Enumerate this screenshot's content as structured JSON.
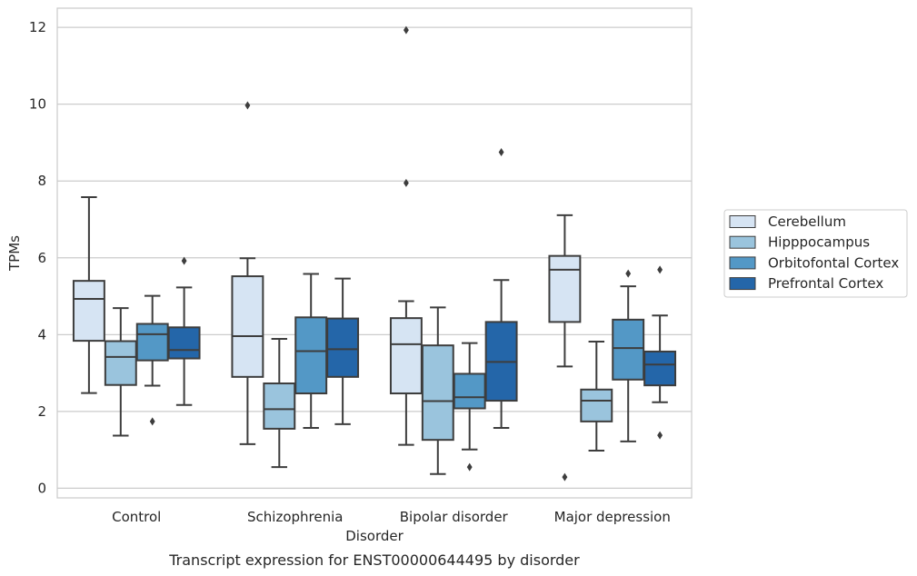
{
  "chart_data": {
    "type": "box",
    "caption": "Transcript expression for ENST00000644495 by disorder",
    "xlabel": "Disorder",
    "ylabel": "TPMs",
    "ylim": [
      -0.25,
      12.5
    ],
    "yticks": [
      0,
      2,
      4,
      6,
      8,
      10,
      12
    ],
    "grid": "horizontal",
    "legend_position": "right",
    "categories": [
      "Control",
      "Schizophrenia",
      "Bipolar disorder",
      "Major depression"
    ],
    "series": [
      {
        "name": "Cerebellum",
        "color": "#d6e4f3",
        "boxes": [
          {
            "whisker_low": 2.48,
            "q1": 3.84,
            "median": 4.93,
            "q3": 5.4,
            "whisker_high": 7.58,
            "outliers": []
          },
          {
            "whisker_low": 1.15,
            "q1": 2.9,
            "median": 3.96,
            "q3": 5.52,
            "whisker_high": 5.99,
            "outliers": [
              9.97
            ]
          },
          {
            "whisker_low": 1.13,
            "q1": 2.47,
            "median": 3.75,
            "q3": 4.43,
            "whisker_high": 4.87,
            "outliers": [
              7.95,
              11.93
            ]
          },
          {
            "whisker_low": 3.17,
            "q1": 4.33,
            "median": 5.69,
            "q3": 6.05,
            "whisker_high": 7.11,
            "outliers": [
              0.29
            ]
          }
        ]
      },
      {
        "name": "Hipppocampus",
        "color": "#9ac4dd",
        "boxes": [
          {
            "whisker_low": 1.37,
            "q1": 2.69,
            "median": 3.42,
            "q3": 3.83,
            "whisker_high": 4.69,
            "outliers": []
          },
          {
            "whisker_low": 0.55,
            "q1": 1.55,
            "median": 2.06,
            "q3": 2.73,
            "whisker_high": 3.89,
            "outliers": []
          },
          {
            "whisker_low": 0.37,
            "q1": 1.26,
            "median": 2.27,
            "q3": 3.72,
            "whisker_high": 4.71,
            "outliers": []
          },
          {
            "whisker_low": 0.98,
            "q1": 1.74,
            "median": 2.28,
            "q3": 2.57,
            "whisker_high": 3.82,
            "outliers": []
          }
        ]
      },
      {
        "name": "Orbitofontal Cortex",
        "color": "#5398c6",
        "boxes": [
          {
            "whisker_low": 2.67,
            "q1": 3.33,
            "median": 4.01,
            "q3": 4.28,
            "whisker_high": 5.01,
            "outliers": [
              1.74
            ]
          },
          {
            "whisker_low": 1.57,
            "q1": 2.47,
            "median": 3.57,
            "q3": 4.45,
            "whisker_high": 5.58,
            "outliers": []
          },
          {
            "whisker_low": 1.01,
            "q1": 2.08,
            "median": 2.37,
            "q3": 2.98,
            "whisker_high": 3.78,
            "outliers": [
              0.55
            ]
          },
          {
            "whisker_low": 1.22,
            "q1": 2.83,
            "median": 3.65,
            "q3": 4.39,
            "whisker_high": 5.26,
            "outliers": [
              5.59
            ]
          }
        ]
      },
      {
        "name": "Prefrontal Cortex",
        "color": "#2466a9",
        "boxes": [
          {
            "whisker_low": 2.17,
            "q1": 3.38,
            "median": 3.6,
            "q3": 4.19,
            "whisker_high": 5.23,
            "outliers": [
              5.92
            ]
          },
          {
            "whisker_low": 1.67,
            "q1": 2.9,
            "median": 3.62,
            "q3": 4.42,
            "whisker_high": 5.46,
            "outliers": []
          },
          {
            "whisker_low": 1.57,
            "q1": 2.28,
            "median": 3.29,
            "q3": 4.33,
            "whisker_high": 5.42,
            "outliers": [
              8.75
            ]
          },
          {
            "whisker_low": 2.24,
            "q1": 2.68,
            "median": 3.22,
            "q3": 3.56,
            "whisker_high": 4.5,
            "outliers": [
              1.38,
              5.69
            ]
          }
        ]
      }
    ]
  }
}
